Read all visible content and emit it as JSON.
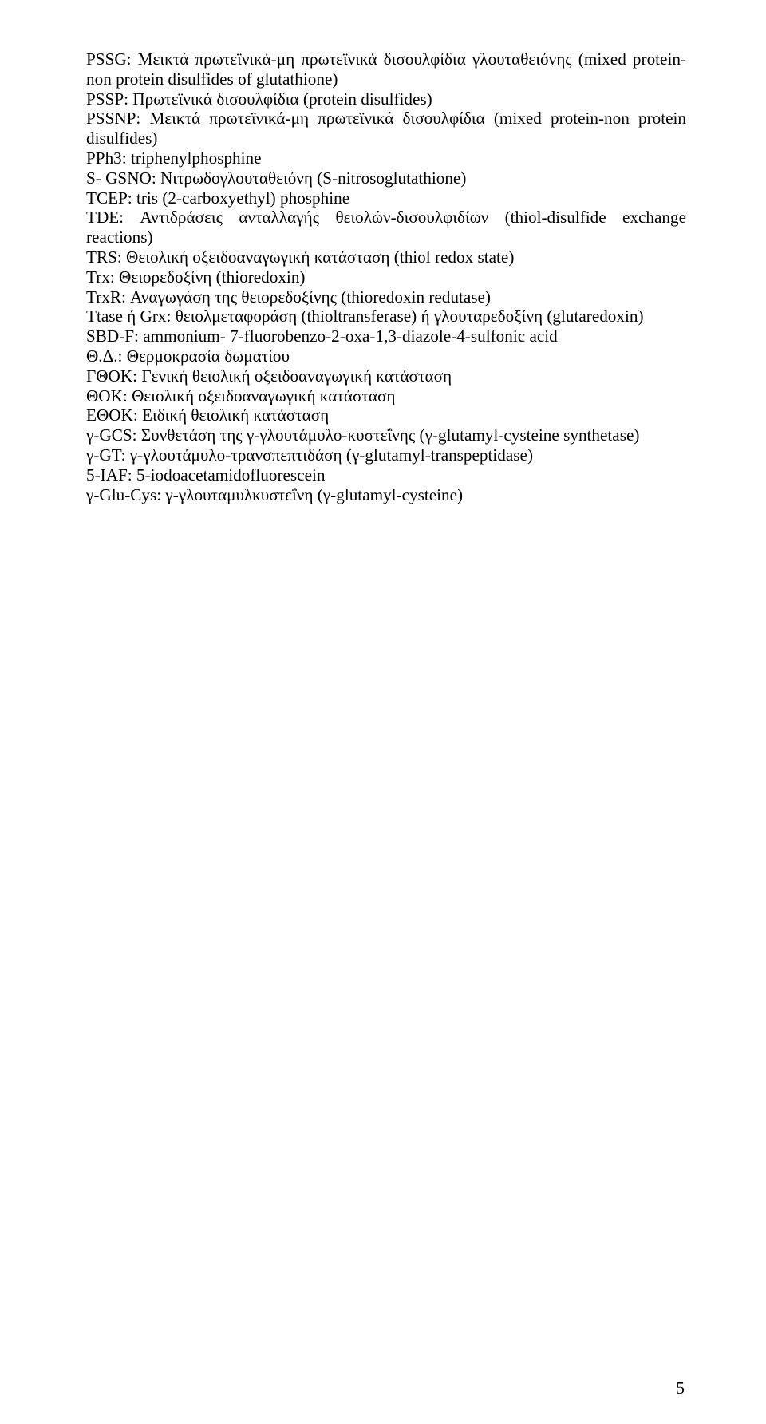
{
  "page_number": "5",
  "entries": [
    {
      "key": "pssg",
      "text": "PSSG: Μεικτά πρωτεϊνικά-μη πρωτεϊνικά δισουλφίδια γλουταθειόνης (mixed protein-non protein disulfides of glutathione)",
      "justify": true
    },
    {
      "key": "pssp",
      "text": "PSSP: Πρωτεϊνικά δισουλφίδια (protein disulfides)",
      "justify": false
    },
    {
      "key": "pssnp",
      "text": "PSSNP: Μεικτά πρωτεϊνικά-μη πρωτεϊνικά δισουλφίδια (mixed protein-non protein disulfides)",
      "justify": true
    },
    {
      "key": "pph3",
      "text": "PPh3: triphenylphosphine",
      "justify": false
    },
    {
      "key": "sgsno",
      "text": "S- GSNO: Νιτρωδογλουταθειόνη (S-nitrosoglutathione)",
      "justify": false
    },
    {
      "key": "tcep",
      "text": "TCEP: tris (2-carboxyethyl) phosphine",
      "justify": false
    },
    {
      "key": "tde",
      "text": "TDE: Αντιδράσεις ανταλλαγής θειολών-δισουλφιδίων (thiol-disulfide exchange reactions)",
      "justify": true
    },
    {
      "key": "trs",
      "text": "TRS: Θειολική οξειδοαναγωγική κατάσταση (thiol redox state)",
      "justify": false
    },
    {
      "key": "trx",
      "text": "Trx: Θειορεδοξίνη (thioredoxin)",
      "justify": false
    },
    {
      "key": "trxr",
      "text": "TrxR: Αναγωγάση της θειορεδοξίνης (thioredoxin redutase)",
      "justify": false
    },
    {
      "key": "ttase",
      "text": "Ttase ή Grx: θειολμεταφοράση (thioltransferase) ή γλουταρεδοξίνη (glutaredoxin)",
      "justify": true
    },
    {
      "key": "sbdf",
      "text": "SBD-F: ammonium- 7-fluorobenzo-2-oxa-1,3-diazole-4-sulfonic acid",
      "justify": false
    },
    {
      "key": "thd",
      "text": "Θ.Δ.: Θερμοκρασία δωματίου",
      "justify": false
    },
    {
      "key": "gthok",
      "text": "ΓΘΟΚ: Γενική θειολική οξειδοαναγωγική κατάσταση",
      "justify": false
    },
    {
      "key": "thok",
      "text": "ΘΟΚ: Θειολική οξειδοαναγωγική κατάσταση",
      "justify": false
    },
    {
      "key": "ethok",
      "text": "ΕΘΟΚ: Ειδική θειολική κατάσταση",
      "justify": false
    },
    {
      "key": "ggcs",
      "text": "γ-GCS: Συνθετάση της γ-γλουτάμυλο-κυστεΐνης (γ-glutamyl-cysteine synthetase)",
      "justify": false
    },
    {
      "key": "ggt",
      "text": "γ-GT: γ-γλουτάμυλο-τρανσπεπτιδάση (γ-glutamyl-transpeptidase)",
      "justify": false
    },
    {
      "key": "5iaf",
      "text": "5-IAF: 5-iodoacetamidofluorescein",
      "justify": false
    },
    {
      "key": "gglucys",
      "text": "γ-Glu-Cys: γ-γλουταμυλκυστεΐνη (γ-glutamyl-cysteine)",
      "justify": false
    }
  ]
}
